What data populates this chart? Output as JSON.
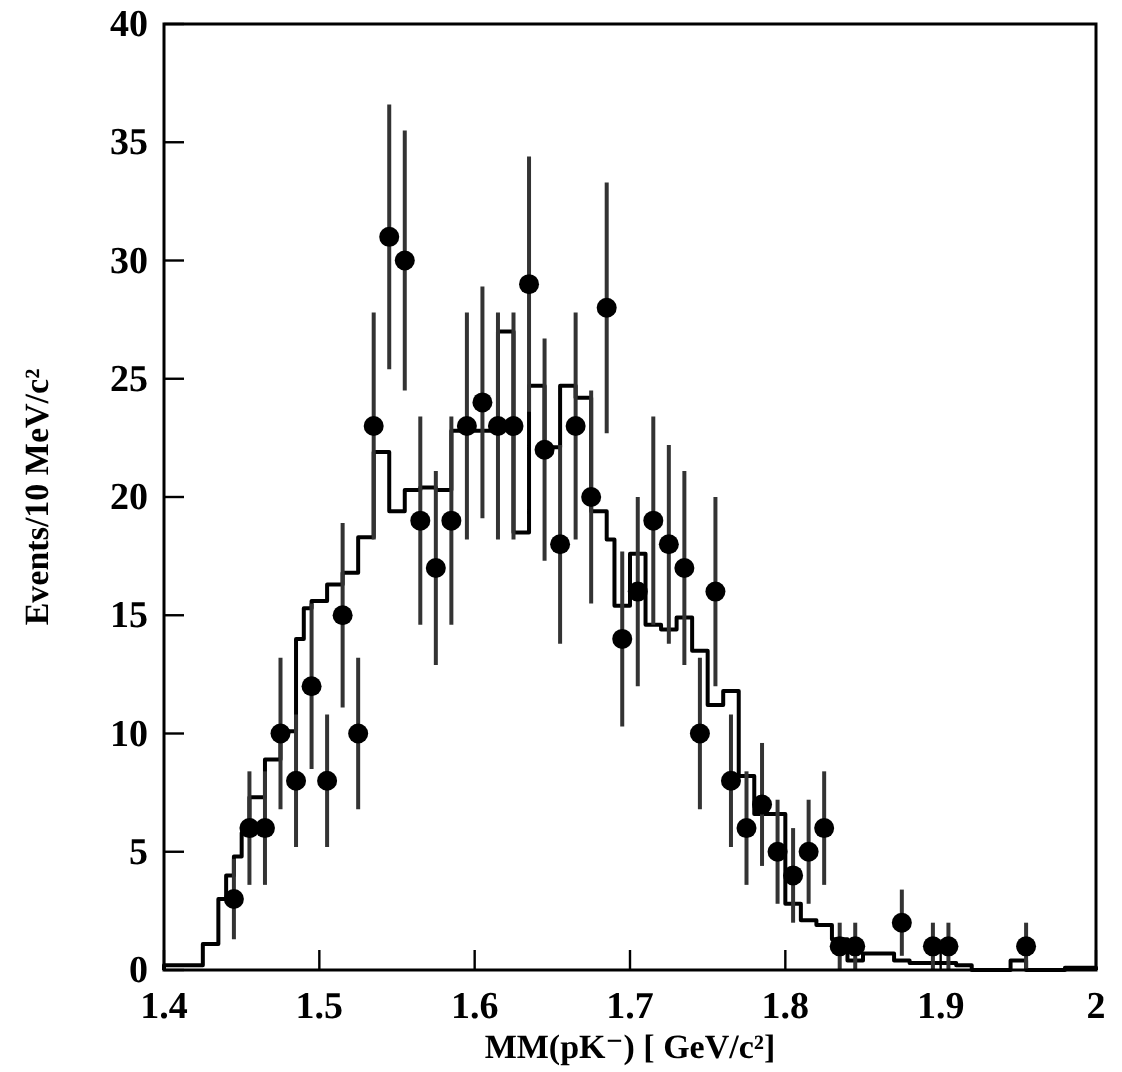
{
  "chart_data": {
    "type": "histogram",
    "xlabel": "MM(pK⁻) [ GeV/c²]",
    "ylabel": "Events/10 MeV/c²",
    "xlim": [
      1.4,
      2
    ],
    "xticks": [
      1.4,
      1.5,
      1.6,
      1.7,
      1.8,
      1.9,
      {
        "value": 2,
        "label": "2"
      }
    ],
    "ylim": [
      0,
      40
    ],
    "yticks": [
      0,
      5,
      10,
      15,
      20,
      25,
      30,
      35,
      40
    ],
    "grid": false,
    "series": [
      {
        "color": "#000000",
        "bins": [
          1.4,
          1.405,
          1.41,
          1.415,
          1.42,
          1.425,
          1.43,
          1.435,
          1.44,
          1.445,
          1.45,
          1.455,
          1.46,
          1.465,
          1.47,
          1.475,
          1.48,
          1.485,
          1.49,
          1.495,
          1.5,
          1.505,
          1.51,
          1.515,
          1.52,
          1.525,
          1.53,
          1.535,
          1.54,
          1.545,
          1.55,
          1.555,
          1.56,
          1.565,
          1.57,
          1.575,
          1.58,
          1.585,
          1.59,
          1.595,
          1.6,
          1.605,
          1.61,
          1.615,
          1.62,
          1.625,
          1.63,
          1.635,
          1.64,
          1.645,
          1.65,
          1.655,
          1.66,
          1.665,
          1.67,
          1.675,
          1.68,
          1.685,
          1.69,
          1.695,
          1.7,
          1.705,
          1.71,
          1.715,
          1.72,
          1.725,
          1.73,
          1.735,
          1.74,
          1.745,
          1.75,
          1.755,
          1.76,
          1.765,
          1.77,
          1.775,
          1.78,
          1.785,
          1.79,
          1.795,
          1.8,
          1.805,
          1.81,
          1.815,
          1.82,
          1.825,
          1.83,
          1.835,
          1.84,
          1.845,
          1.85,
          1.855,
          1.86,
          1.865,
          1.87,
          1.875,
          1.88,
          1.885,
          1.89,
          1.895,
          1.9,
          1.905,
          1.91,
          1.915,
          1.92,
          1.925,
          1.93,
          1.935,
          1.94,
          1.945,
          1.95,
          1.955,
          1.96,
          1.965,
          1.97,
          1.975,
          1.98,
          1.985,
          1.99,
          1.995,
          2
        ],
        "values": [
          0.2,
          0.2,
          0.2,
          0.2,
          0.2,
          1.1,
          1.1,
          3,
          4,
          4.8,
          5.8,
          7.3,
          7.3,
          8.9,
          8.9,
          10.1,
          10.1,
          14,
          15.3,
          15.6,
          15.6,
          16.3,
          16.3,
          16.8,
          16.8,
          18.3,
          18.3,
          21.9,
          21.9,
          19.4,
          19.4,
          20.3,
          20.3,
          20.4,
          20.4,
          20.3,
          20.3,
          22.8,
          22.8,
          22.8,
          22.8,
          22.8,
          22.8,
          27,
          27,
          18.5,
          18.5,
          24.7,
          24.7,
          22.1,
          22.1,
          24.7,
          24.7,
          24.2,
          24.2,
          19.4,
          19.4,
          18.2,
          15.4,
          15.4,
          17.6,
          17.6,
          14.6,
          14.6,
          14.4,
          14.4,
          14.9,
          14.9,
          13.5,
          13.5,
          11.2,
          11.2,
          11.8,
          11.8,
          8.2,
          8.2,
          6.6,
          6.6,
          6.6,
          6.6,
          2.8,
          2.8,
          2.1,
          2.1,
          1.9,
          1.9,
          1.3,
          1.3,
          0.4,
          0.4,
          0.7,
          0.7,
          0.7,
          0.7,
          0.4,
          0.4,
          0.3,
          0.3,
          0.3,
          0.3,
          0.3,
          0.3,
          0.2,
          0.2,
          0,
          0,
          0,
          0,
          0,
          0.4,
          0.4,
          0,
          0,
          0,
          0,
          0,
          0.1,
          0.1,
          0.1,
          0.1
        ]
      },
      {
        "type": "scatter",
        "color": "#000000",
        "marker": "circle",
        "x": [
          1.445,
          1.455,
          1.465,
          1.475,
          1.485,
          1.495,
          1.505,
          1.515,
          1.525,
          1.535,
          1.545,
          1.555,
          1.565,
          1.575,
          1.585,
          1.595,
          1.605,
          1.615,
          1.625,
          1.635,
          1.645,
          1.655,
          1.665,
          1.675,
          1.685,
          1.695,
          1.705,
          1.715,
          1.725,
          1.735,
          1.745,
          1.755,
          1.765,
          1.775,
          1.785,
          1.795,
          1.805,
          1.815,
          1.825,
          1.835,
          1.845,
          1.875,
          1.895,
          1.905,
          1.955
        ],
        "values": [
          3,
          6,
          6,
          10,
          8,
          12,
          8,
          15,
          10,
          23,
          31,
          30,
          19,
          17,
          19,
          23,
          24,
          23,
          23,
          29,
          22,
          18,
          23,
          20,
          28,
          14,
          16,
          19,
          18,
          17,
          10,
          16,
          8,
          6,
          7,
          5,
          4,
          5,
          6,
          1,
          1,
          2,
          1,
          1,
          1
        ],
        "errors": [
          1.7,
          2.4,
          2.4,
          3.2,
          2.8,
          3.5,
          2.8,
          3.9,
          3.2,
          4.8,
          5.6,
          5.5,
          4.4,
          4.1,
          4.4,
          4.8,
          4.9,
          4.8,
          4.8,
          5.4,
          4.7,
          4.2,
          4.8,
          4.5,
          5.3,
          3.7,
          4,
          4.4,
          4.2,
          4.1,
          3.2,
          4,
          2.8,
          2.4,
          2.6,
          2.2,
          2,
          2.2,
          2.4,
          1,
          1,
          1.4,
          1,
          1,
          1
        ]
      }
    ]
  }
}
